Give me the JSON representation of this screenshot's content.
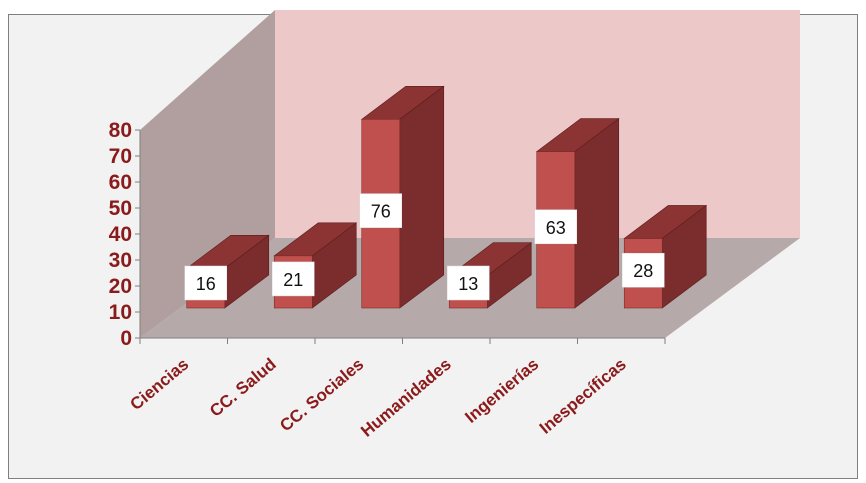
{
  "chart_data": {
    "type": "bar",
    "title": "",
    "categories": [
      "Ciencias",
      "CC. Salud",
      "CC. Sociales",
      "Humanidades",
      "Ingenierías",
      "Inespecíficas"
    ],
    "values": [
      16,
      21,
      76,
      13,
      63,
      28
    ],
    "ylim": [
      0,
      80
    ],
    "yticks": [
      "0",
      "10",
      "20",
      "30",
      "40",
      "50",
      "60",
      "70",
      "80"
    ],
    "xlabel": "",
    "ylabel": "",
    "grid": false,
    "style": "3d-column",
    "colors": {
      "bar_front": "#c0504d",
      "bar_side": "#7b2c2c",
      "bar_top": "#8c3333",
      "back_wall": "#ecc8c8",
      "side_wall": "#b19f9f",
      "floor": "#b6a9a9",
      "label_box": "#ffffff",
      "axis_text": "#8b1a1a"
    }
  }
}
